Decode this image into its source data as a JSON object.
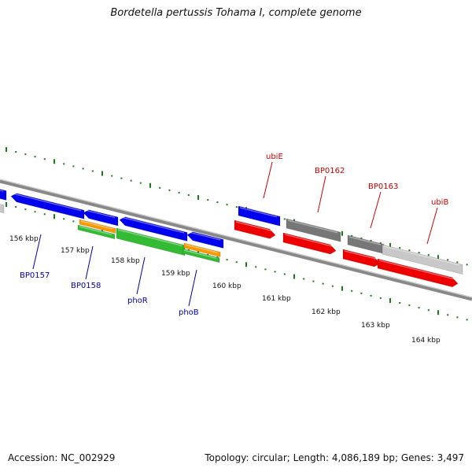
{
  "title": "Bordetella pertussis Tohama I, complete genome",
  "footer": {
    "accession": "Accession: NC_002929",
    "summary": "Topology: circular; Length: 4,086,189 bp; Genes: 3,497"
  },
  "scale_labels": [
    "156 kbp",
    "157 kbp",
    "158 kbp",
    "159 kbp",
    "160 kbp",
    "161 kbp",
    "162 kbp",
    "163 kbp",
    "164 kbp"
  ],
  "gene_labels_forward": [
    "ubiE",
    "BP0162",
    "BP0163",
    "ubiB"
  ],
  "gene_labels_reverse": [
    "BP0157",
    "BP0158",
    "phoR",
    "phoB"
  ],
  "colors": {
    "reverse_label": "#0000aa",
    "forward_label": "#cc0000",
    "tick": "#1a7a1a",
    "blue_feature": "#0000ee",
    "red_feature": "#ee0000",
    "green_feature": "#33bb33",
    "orange_feature": "#ff9900",
    "gray_feature": "#777777",
    "lightgray_feature": "#c8c8c8",
    "backbone": "#888888"
  }
}
